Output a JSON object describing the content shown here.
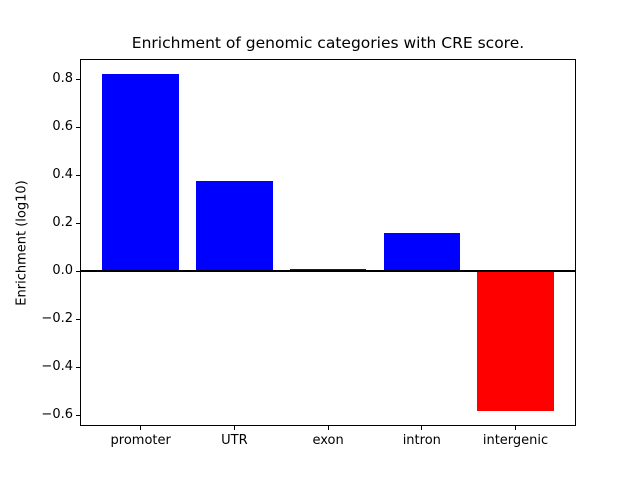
{
  "chart_data": {
    "type": "bar",
    "title": "Enrichment of genomic categories with CRE score.",
    "xlabel": "",
    "ylabel": "Enrichment (log10)",
    "categories": [
      "promoter",
      "UTR",
      "exon",
      "intron",
      "intergenic"
    ],
    "values": [
      0.82,
      0.374,
      0.01,
      0.158,
      -0.583
    ],
    "bar_colors": [
      "#0000ff",
      "#0000ff",
      "#0000ff",
      "#0000ff",
      "#ff0000"
    ],
    "positive_color": "#0000ff",
    "negative_color": "#ff0000",
    "yticks": [
      0.8,
      0.6,
      0.4,
      0.2,
      0.0,
      -0.2,
      -0.4,
      -0.6
    ],
    "ylim": [
      -0.646,
      0.883
    ],
    "grid": false,
    "legend": "none",
    "zero_line": true,
    "background_color": "#ffffff",
    "axes_color": "#000000"
  }
}
